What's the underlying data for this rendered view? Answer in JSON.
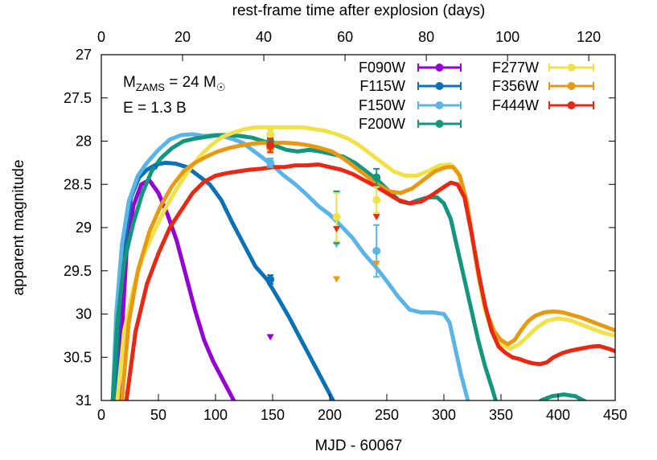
{
  "chart_data": {
    "type": "line",
    "xlabel": "MJD - 60067",
    "x2label": "rest-frame time after explosion (days)",
    "ylabel": "apparent magnitude",
    "xlim": [
      0,
      450
    ],
    "ylim": [
      31,
      27
    ],
    "x2lim": [
      0,
      126.5
    ],
    "y_inverted": true,
    "grid": false,
    "xticks": [
      "0",
      "50",
      "100",
      "150",
      "200",
      "250",
      "300",
      "350",
      "400",
      "450"
    ],
    "yticks": [
      "27",
      "27.5",
      "28",
      "28.5",
      "29",
      "29.5",
      "30",
      "30.5",
      "31"
    ],
    "x2ticks": [
      "0",
      "20",
      "40",
      "60",
      "80",
      "100",
      "120"
    ],
    "annotation": {
      "line1_pre": "M",
      "line1_sub": "ZAMS",
      "line1_post": " = 24 M",
      "line1_sym": "☉",
      "line2": "E = 1.3 B"
    },
    "legend_position": "top-right",
    "series": [
      {
        "name": "F090W",
        "color": "#9400d3",
        "x": [
          15,
          18,
          22,
          28,
          35,
          42,
          50,
          58,
          66,
          74,
          82,
          90,
          98,
          106,
          112,
          116
        ],
        "y": [
          31,
          30.2,
          29.3,
          28.75,
          28.5,
          28.45,
          28.6,
          28.85,
          29.15,
          29.55,
          29.95,
          30.3,
          30.55,
          30.75,
          30.9,
          31
        ],
        "obs": [
          {
            "x": 148,
            "y": 30.27,
            "type": "upper"
          }
        ]
      },
      {
        "name": "F115W",
        "color": "#0a72b4",
        "x": [
          12,
          15,
          20,
          26,
          33,
          40,
          48,
          56,
          65,
          75,
          85,
          95,
          105,
          115,
          125,
          135,
          145,
          155,
          165,
          175,
          185,
          195,
          203
        ],
        "y": [
          31,
          30.1,
          29.2,
          28.65,
          28.42,
          28.33,
          28.27,
          28.25,
          28.26,
          28.3,
          28.4,
          28.5,
          28.68,
          28.95,
          29.2,
          29.45,
          29.6,
          29.82,
          30.05,
          30.3,
          30.55,
          30.8,
          31
        ],
        "obs": [
          {
            "x": 48,
            "y": 28.3,
            "type": "upper"
          },
          {
            "x": 148,
            "y": 29.6,
            "err": 0.05,
            "type": "detection"
          }
        ]
      },
      {
        "name": "F150W",
        "color": "#5ab4e6",
        "x": [
          10,
          13,
          18,
          24,
          32,
          40,
          50,
          60,
          70,
          80,
          90,
          100,
          108,
          116,
          124,
          132,
          140,
          150,
          160,
          170,
          180,
          190,
          200,
          210,
          220,
          230,
          240,
          250,
          260,
          270,
          280,
          290,
          300,
          305,
          310,
          315,
          320,
          325,
          328
        ],
        "y": [
          31,
          30.0,
          29.2,
          28.7,
          28.4,
          28.25,
          28.1,
          27.98,
          27.93,
          27.92,
          27.94,
          27.93,
          27.95,
          27.98,
          28.02,
          28.1,
          28.18,
          28.28,
          28.4,
          28.5,
          28.62,
          28.75,
          28.85,
          28.98,
          29.12,
          29.3,
          29.45,
          29.62,
          29.8,
          29.95,
          29.98,
          29.98,
          30.0,
          30.1,
          30.4,
          30.7,
          30.95,
          31.2,
          31.4
        ],
        "obs": [
          {
            "x": 148,
            "y": 28.25,
            "err": 0.05,
            "type": "detection"
          },
          {
            "x": 241,
            "y": 29.27,
            "err": 0.3,
            "type": "detection"
          },
          {
            "x": 206,
            "y": 29.2,
            "type": "upper"
          }
        ]
      },
      {
        "name": "F200W",
        "color": "#14967d",
        "x": [
          10,
          14,
          20,
          28,
          36,
          44,
          52,
          62,
          72,
          82,
          92,
          102,
          112,
          122,
          132,
          142,
          152,
          162,
          172,
          182,
          192,
          202,
          212,
          222,
          232,
          242,
          252,
          262,
          270,
          278,
          286,
          294,
          300,
          306,
          312,
          318,
          324,
          330,
          336,
          342,
          350
        ],
        "y": [
          31,
          30.1,
          29.4,
          28.95,
          28.6,
          28.35,
          28.2,
          28.08,
          28.0,
          27.97,
          27.95,
          27.93,
          27.93,
          27.94,
          27.96,
          28.0,
          28.05,
          28.1,
          28.12,
          28.1,
          28.12,
          28.15,
          28.18,
          28.25,
          28.35,
          28.45,
          28.58,
          28.7,
          28.72,
          28.68,
          28.65,
          28.65,
          28.72,
          28.9,
          29.25,
          29.6,
          29.95,
          30.3,
          30.6,
          30.85,
          31.2
        ],
        "obs": [
          {
            "x": 148,
            "y": 28.0,
            "err": 0.05,
            "type": "detection"
          },
          {
            "x": 206,
            "y": 28.88,
            "err": 0.3,
            "type": "detection"
          },
          {
            "x": 241,
            "y": 28.42,
            "err": 0.1,
            "type": "detection"
          }
        ],
        "tail_x": [
          385,
          395,
          405,
          415,
          425
        ],
        "tail_y": [
          31.0,
          30.95,
          30.93,
          30.95,
          31.02
        ]
      },
      {
        "name": "F277W",
        "color": "#f0e14a",
        "x": [
          14,
          20,
          28,
          36,
          46,
          56,
          66,
          76,
          86,
          96,
          106,
          116,
          126,
          136,
          146,
          156,
          166,
          176,
          186,
          196,
          206,
          216,
          226,
          236,
          246,
          256,
          266,
          276,
          286,
          296,
          306,
          312,
          318,
          324,
          330,
          336,
          342,
          350,
          358,
          366,
          374,
          382,
          390,
          400,
          410,
          420,
          430,
          440,
          450
        ],
        "y": [
          31,
          30.2,
          29.7,
          29.35,
          29.05,
          28.78,
          28.55,
          28.35,
          28.18,
          28.05,
          27.95,
          27.9,
          27.86,
          27.84,
          27.84,
          27.84,
          27.84,
          27.84,
          27.86,
          27.88,
          27.92,
          27.97,
          28.05,
          28.15,
          28.25,
          28.35,
          28.4,
          28.4,
          28.35,
          28.28,
          28.27,
          28.35,
          28.6,
          29.05,
          29.55,
          29.95,
          30.2,
          30.35,
          30.4,
          30.35,
          30.25,
          30.15,
          30.08,
          30.05,
          30.07,
          30.12,
          30.17,
          30.22,
          30.25
        ],
        "obs": [
          {
            "x": 148,
            "y": 27.92,
            "err": 0.05,
            "type": "detection"
          },
          {
            "x": 206,
            "y": 28.88,
            "err": 0.28,
            "type": "detection"
          },
          {
            "x": 241,
            "y": 28.68,
            "err": 0.15,
            "type": "detection"
          }
        ]
      },
      {
        "name": "F356W",
        "color": "#e69a14",
        "x": [
          18,
          24,
          32,
          42,
          52,
          62,
          72,
          82,
          92,
          102,
          112,
          122,
          132,
          142,
          152,
          162,
          172,
          182,
          192,
          202,
          212,
          222,
          232,
          242,
          252,
          262,
          272,
          282,
          292,
          302,
          308,
          314,
          320,
          326,
          332,
          338,
          344,
          350,
          356,
          362,
          368,
          374,
          380,
          388,
          396,
          404,
          412,
          420,
          428,
          436,
          444,
          450
        ],
        "y": [
          31,
          30.1,
          29.5,
          29.05,
          28.75,
          28.52,
          28.35,
          28.25,
          28.18,
          28.12,
          28.08,
          28.05,
          28.03,
          28.02,
          28.02,
          28.02,
          28.03,
          28.05,
          28.08,
          28.12,
          28.2,
          28.3,
          28.4,
          28.5,
          28.58,
          28.6,
          28.55,
          28.45,
          28.35,
          28.3,
          28.3,
          28.4,
          28.7,
          29.2,
          29.65,
          30.0,
          30.2,
          30.3,
          30.35,
          30.3,
          30.18,
          30.08,
          30.02,
          29.98,
          29.97,
          29.98,
          30.01,
          30.04,
          30.08,
          30.12,
          30.16,
          30.19
        ],
        "obs": [
          {
            "x": 148,
            "y": 28.08,
            "err": 0.05,
            "type": "detection"
          },
          {
            "x": 206,
            "y": 29.6,
            "type": "upper"
          },
          {
            "x": 241,
            "y": 29.42,
            "type": "upper"
          }
        ]
      },
      {
        "name": "F444W",
        "color": "#e62814",
        "x": [
          22,
          30,
          40,
          50,
          60,
          70,
          80,
          90,
          100,
          110,
          120,
          130,
          140,
          150,
          160,
          170,
          180,
          190,
          200,
          210,
          220,
          230,
          240,
          250,
          260,
          270,
          280,
          290,
          300,
          306,
          312,
          318,
          324,
          330,
          336,
          342,
          348,
          354,
          360,
          366,
          372,
          378,
          384,
          390,
          396,
          404,
          412,
          420,
          428,
          436,
          444,
          450
        ],
        "y": [
          31,
          30.2,
          29.65,
          29.3,
          29.0,
          28.8,
          28.6,
          28.47,
          28.4,
          28.37,
          28.35,
          28.33,
          28.32,
          28.3,
          28.3,
          28.28,
          28.28,
          28.27,
          28.3,
          28.33,
          28.38,
          28.45,
          28.52,
          28.6,
          28.68,
          28.72,
          28.7,
          28.62,
          28.53,
          28.48,
          28.5,
          28.65,
          29.05,
          29.5,
          29.9,
          30.2,
          30.38,
          30.45,
          30.5,
          30.52,
          30.55,
          30.57,
          30.58,
          30.56,
          30.5,
          30.45,
          30.42,
          30.4,
          30.38,
          30.37,
          30.4,
          30.43
        ],
        "obs": [
          {
            "x": 148,
            "y": 28.05,
            "err": 0.08,
            "type": "detection"
          },
          {
            "x": 206,
            "y": 29.02,
            "type": "upper"
          },
          {
            "x": 241,
            "y": 28.88,
            "type": "upper"
          }
        ]
      }
    ]
  }
}
